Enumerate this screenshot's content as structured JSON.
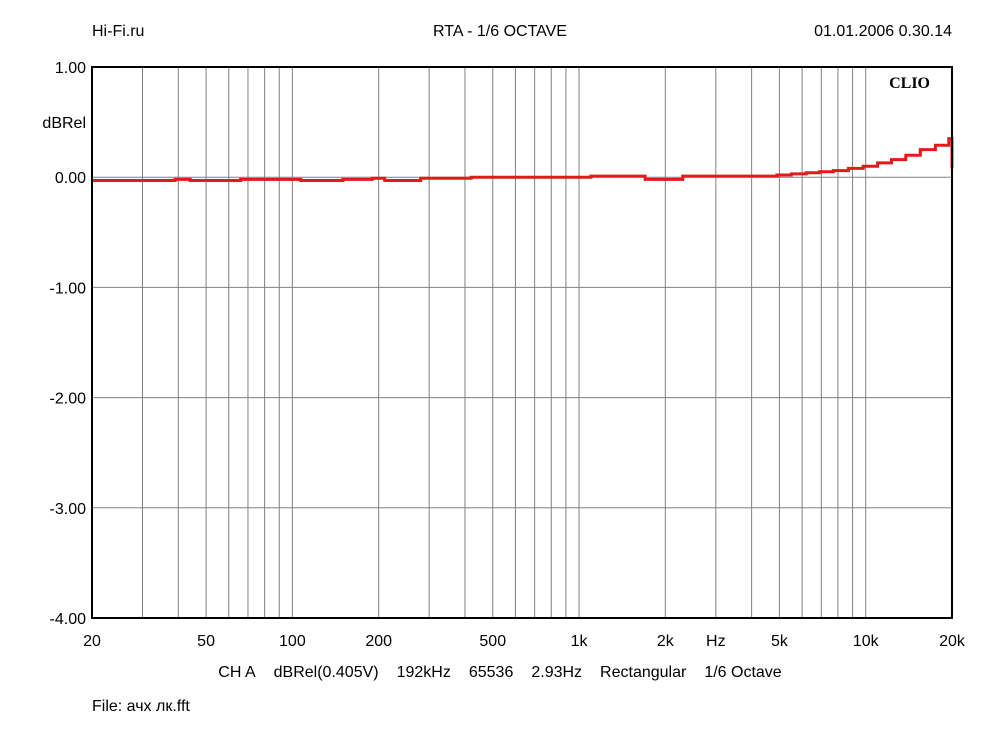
{
  "header": {
    "left": "Hi-Fi.ru",
    "title": "RTA - 1/6 OCTAVE",
    "datetime": "01.01.2006 0.30.14"
  },
  "footer": {
    "info": [
      "CH A",
      "dBRel(0.405V)",
      "192kHz",
      "65536",
      "2.93Hz",
      "Rectangular",
      "1/6 Octave"
    ],
    "file": "File: ачх лк.fft"
  },
  "brand": "CLIO",
  "colors": {
    "trace": "#e41a1a",
    "grid": "#808080",
    "frame": "#000000"
  },
  "chart_data": {
    "type": "line",
    "title": "RTA - 1/6 OCTAVE",
    "xlabel": "Hz",
    "ylabel": "dBRel",
    "x_scale": "log",
    "xlim": [
      20,
      20000
    ],
    "ylim": [
      -4.0,
      1.0
    ],
    "grid": true,
    "y_ticks": [
      "1.00",
      "0.00",
      "-1.00",
      "-2.00",
      "-3.00",
      "-4.00"
    ],
    "y_tick_values": [
      1,
      0,
      -1,
      -2,
      -3,
      -4
    ],
    "x_ticks": [
      "20",
      "50",
      "100",
      "200",
      "500",
      "1k",
      "2k",
      "5k",
      "10k",
      "20k"
    ],
    "x_tick_values": [
      20,
      50,
      100,
      200,
      500,
      1000,
      2000,
      5000,
      10000,
      20000
    ],
    "x_unit_label": "Hz",
    "x_unit_position": 3000,
    "series": [
      {
        "style": "step",
        "x": [
          20,
          39,
          44,
          66,
          95,
          107,
          150,
          190,
          210,
          280,
          420,
          700,
          1000,
          1100,
          1500,
          1700,
          2300,
          3300,
          3900,
          4900,
          5500,
          6200,
          6900,
          7700,
          8700,
          9800,
          11000,
          12300,
          13800,
          15500,
          17500,
          19500,
          20000
        ],
        "y": [
          -0.03,
          -0.02,
          -0.03,
          -0.02,
          -0.02,
          -0.03,
          -0.02,
          -0.01,
          -0.03,
          -0.01,
          0.0,
          0.0,
          0.0,
          0.01,
          0.01,
          -0.02,
          0.01,
          0.01,
          0.01,
          0.02,
          0.03,
          0.04,
          0.05,
          0.06,
          0.08,
          0.1,
          0.13,
          0.16,
          0.2,
          0.25,
          0.29,
          0.35,
          0.08
        ]
      }
    ]
  }
}
